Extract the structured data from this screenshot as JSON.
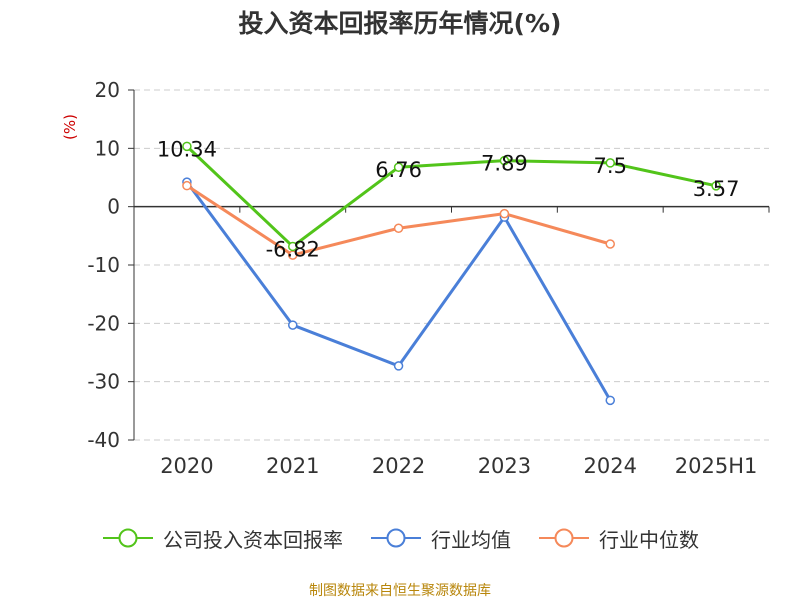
{
  "title": "投入资本回报率历年情况(%)",
  "footer": "制图数据来自恒生聚源数据库",
  "chart_data": {
    "type": "line",
    "categories": [
      "2020",
      "2021",
      "2022",
      "2023",
      "2024",
      "2025H1"
    ],
    "ylabel": "(%)",
    "ylim": [
      -40,
      20
    ],
    "yticks": [
      20,
      10,
      0,
      -10,
      -20,
      -30,
      -40
    ],
    "grid": true,
    "legend_position": "bottom",
    "series": [
      {
        "name": "公司投入资本回报率",
        "color": "#52c41a",
        "values": [
          10.34,
          -6.82,
          6.76,
          7.89,
          7.5,
          3.57
        ],
        "labels": [
          "10.34",
          "-6.82",
          "6.76",
          "7.89",
          "7.5",
          "3.57"
        ]
      },
      {
        "name": "行业均值",
        "color": "#4a7fd8",
        "values": [
          4.2,
          -20.3,
          -27.3,
          -1.8,
          -33.2,
          null
        ]
      },
      {
        "name": "行业中位数",
        "color": "#f5895a",
        "values": [
          3.6,
          -8.3,
          -3.7,
          -1.2,
          -6.4,
          null
        ]
      }
    ]
  }
}
